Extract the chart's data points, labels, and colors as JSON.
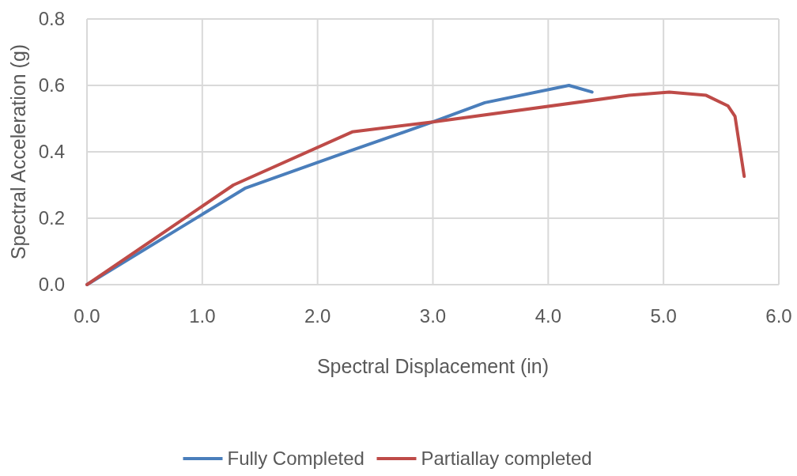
{
  "chart_data": {
    "type": "line",
    "xlabel": "Spectral Displacement (in)",
    "ylabel": "Spectral Acceleration (g)",
    "xlim": [
      0,
      6
    ],
    "xticks": [
      {
        "value": 0,
        "label": "0.0"
      },
      {
        "value": 1,
        "label": "1.0"
      },
      {
        "value": 2,
        "label": "2.0"
      },
      {
        "value": 3,
        "label": "3.0"
      },
      {
        "value": 4,
        "label": "4.0"
      },
      {
        "value": 5,
        "label": "5.0"
      },
      {
        "value": 6,
        "label": "6.0"
      }
    ],
    "ylim": [
      0,
      0.8
    ],
    "yticks": [
      {
        "value": 0,
        "label": "0.0"
      },
      {
        "value": 0.2,
        "label": "0.2"
      },
      {
        "value": 0.4,
        "label": "0.4"
      },
      {
        "value": 0.6,
        "label": "0.6"
      },
      {
        "value": 0.8,
        "label": "0.8"
      }
    ],
    "grid": true,
    "legend": "bottom",
    "marker": "none",
    "line_style": "solid",
    "series": [
      {
        "name": "Fully Completed",
        "color": "#4a7ebb",
        "x": [
          0,
          1.37,
          2.3,
          3.0,
          3.45,
          4.18,
          4.38
        ],
        "values": [
          0,
          0.29,
          0.405,
          0.49,
          0.548,
          0.6,
          0.58
        ]
      },
      {
        "name": "Partiallay completed",
        "color": "#be4b48",
        "x": [
          0,
          1.27,
          2.3,
          3.0,
          4.7,
          5.05,
          5.37,
          5.56,
          5.62,
          5.7
        ],
        "values": [
          0,
          0.3,
          0.46,
          0.49,
          0.57,
          0.58,
          0.57,
          0.538,
          0.507,
          0.326
        ]
      }
    ]
  }
}
